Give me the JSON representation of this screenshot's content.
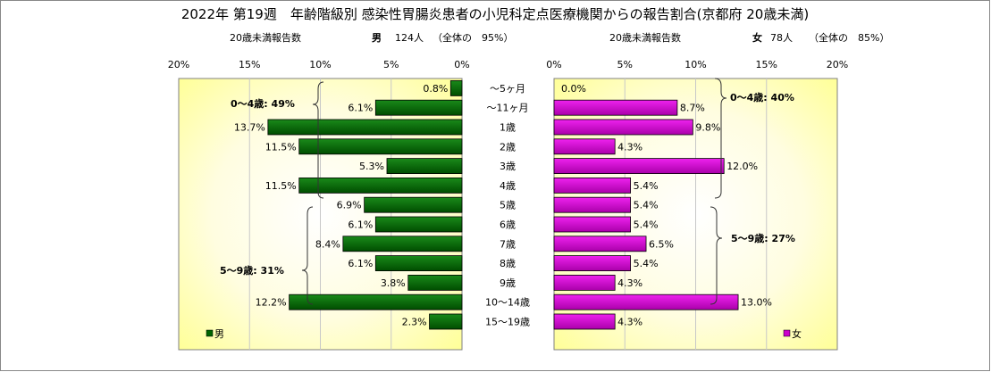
{
  "chart_data": {
    "type": "bar",
    "title": "2022年 第19週　年齢階級別 感染性胃腸炎患者の小児科定点医療機関からの報告割合(京都府 20歳未満)",
    "categories": [
      "～5ヶ月",
      "～11ヶ月",
      "1歳",
      "2歳",
      "3歳",
      "4歳",
      "5歳",
      "6歳",
      "7歳",
      "8歳",
      "9歳",
      "10～14歳",
      "15～19歳"
    ],
    "x_ticks": [
      "20%",
      "15%",
      "10%",
      "5%",
      "0%"
    ],
    "x_ticks_right": [
      "0%",
      "5%",
      "10%",
      "15%",
      "20%"
    ],
    "xlim": [
      0,
      20
    ],
    "series": [
      {
        "name": "男",
        "color": "#006400",
        "values": [
          0.8,
          6.1,
          13.7,
          11.5,
          5.3,
          11.5,
          6.9,
          6.1,
          8.4,
          6.1,
          3.8,
          12.2,
          2.3
        ],
        "labels": [
          "0.8%",
          "6.1%",
          "13.7%",
          "11.5%",
          "5.3%",
          "11.5%",
          "6.9%",
          "6.1%",
          "8.4%",
          "6.1%",
          "3.8%",
          "12.2%",
          "2.3%"
        ]
      },
      {
        "name": "女",
        "color": "#cc00cc",
        "values": [
          0.0,
          8.7,
          9.8,
          4.3,
          12.0,
          5.4,
          5.4,
          5.4,
          6.5,
          5.4,
          4.3,
          13.0,
          4.3
        ],
        "labels": [
          "0.0%",
          "8.7%",
          "9.8%",
          "4.3%",
          "12.0%",
          "5.4%",
          "5.4%",
          "5.4%",
          "6.5%",
          "5.4%",
          "4.3%",
          "13.0%",
          "4.3%"
        ]
      }
    ],
    "header_left": {
      "count_label": "20歳未満報告数",
      "sex": "男",
      "count": "124人",
      "share": "（全体の　95%）"
    },
    "header_right": {
      "count_label": "20歳未満報告数",
      "sex": "女",
      "count": "78人",
      "share": "（全体の　85%）"
    },
    "annotations": {
      "male_0_4": "0～4歳: 49%",
      "male_5_9": "5～9歳: 31%",
      "female_0_4": "0～4歳: 40%",
      "female_5_9": "5～9歳: 27%"
    },
    "legend_male": "男",
    "legend_female": "女"
  }
}
